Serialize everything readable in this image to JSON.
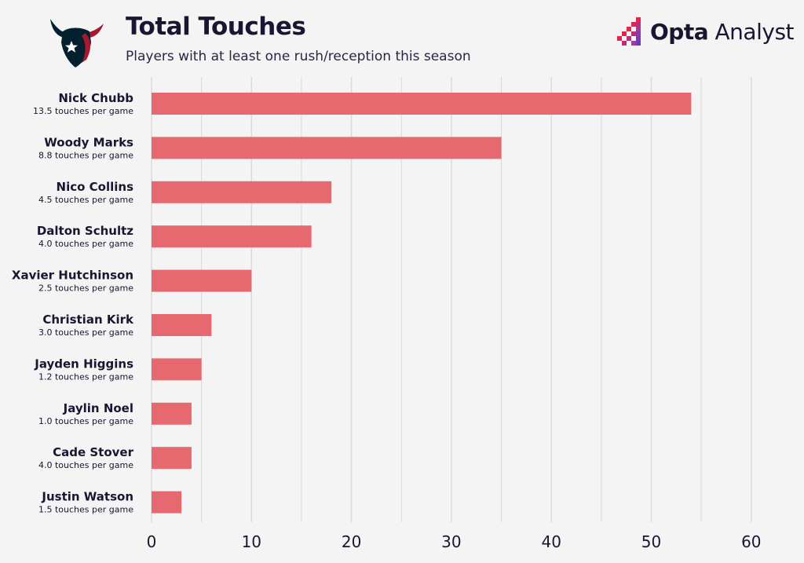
{
  "header": {
    "title": "Total Touches",
    "subtitle": "Players with at least one rush/reception this season"
  },
  "brand": {
    "name_bold": "Opta",
    "name_light": "Analyst"
  },
  "colors": {
    "bar": "#e5696e",
    "grid": "#d9d9d9",
    "text": "#1a1530",
    "team_navy": "#03202f",
    "team_red": "#a71930"
  },
  "chart_data": {
    "type": "bar",
    "orientation": "horizontal",
    "title": "Total Touches",
    "subtitle": "Players with at least one rush/reception this season",
    "xlabel": "",
    "ylabel": "",
    "xlim": [
      0,
      60
    ],
    "xticks": [
      0,
      10,
      20,
      30,
      40,
      50,
      60
    ],
    "grid": true,
    "categories": [
      "Nick Chubb",
      "Woody Marks",
      "Nico Collins",
      "Dalton Schultz",
      "Xavier Hutchinson",
      "Christian Kirk",
      "Jayden Higgins",
      "Jaylin Noel",
      "Cade Stover",
      "Justin Watson"
    ],
    "sublabels": [
      "13.5 touches per game",
      "8.8 touches per game",
      "4.5 touches per game",
      "4.0 touches per game",
      "2.5 touches per game",
      "3.0 touches per game",
      "1.2 touches per game",
      "1.0 touches per game",
      "4.0 touches per game",
      "1.5 touches per game"
    ],
    "values": [
      54,
      35,
      18,
      16,
      10,
      6,
      5,
      4,
      4,
      3
    ]
  }
}
